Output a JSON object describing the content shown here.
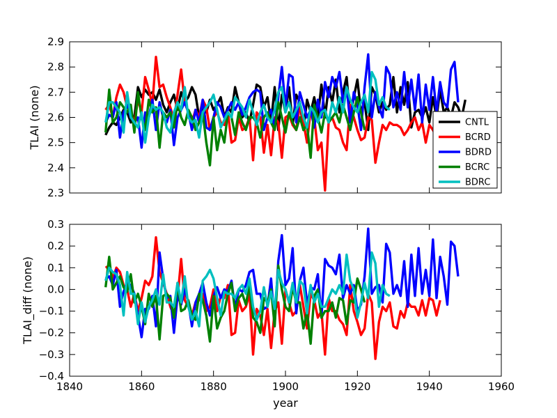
{
  "colors": {
    "CNTL": "#000000",
    "BCRD": "#ff0000",
    "BDRD": "#0000ff",
    "BCRC": "#008000",
    "BDRC": "#00bfbf"
  },
  "chart_data": [
    {
      "type": "line",
      "ylabel": "TLAI (none)",
      "xlim": [
        1840,
        1960
      ],
      "ylim": [
        2.3,
        2.9
      ],
      "yticks": [
        "2.3",
        "2.4",
        "2.5",
        "2.6",
        "2.7",
        "2.8",
        "2.9"
      ],
      "legend_position": "lower-right",
      "legend": [
        "CNTL",
        "BCRD",
        "BDRD",
        "BCRC",
        "BDRC"
      ],
      "series": [
        {
          "name": "CNTL",
          "start_year": 1850,
          "values": [
            2.53,
            2.56,
            2.58,
            2.57,
            2.6,
            2.63,
            2.62,
            2.58,
            2.6,
            2.72,
            2.68,
            2.71,
            2.69,
            2.7,
            2.67,
            2.71,
            2.65,
            2.62,
            2.66,
            2.69,
            2.63,
            2.7,
            2.66,
            2.68,
            2.72,
            2.69,
            2.6,
            2.64,
            2.62,
            2.67,
            2.63,
            2.65,
            2.68,
            2.6,
            2.64,
            2.62,
            2.72,
            2.66,
            2.6,
            2.62,
            2.58,
            2.65,
            2.73,
            2.72,
            2.64,
            2.68,
            2.58,
            2.72,
            2.55,
            2.69,
            2.62,
            2.72,
            2.57,
            2.69,
            2.66,
            2.55,
            2.67,
            2.62,
            2.68,
            2.6,
            2.73,
            2.6,
            2.72,
            2.66,
            2.75,
            2.62,
            2.7,
            2.76,
            2.6,
            2.68,
            2.75,
            2.62,
            2.66,
            2.55,
            2.72,
            2.69,
            2.62,
            2.66,
            2.63,
            2.65,
            2.76,
            2.62,
            2.72,
            2.65,
            2.74,
            2.56,
            2.62,
            2.63,
            2.6,
            2.64,
            2.58,
            2.68,
            2.6,
            2.71,
            2.62,
            2.64,
            2.6,
            2.66,
            2.64,
            2.6,
            2.67
          ]
        },
        {
          "name": "BCRD",
          "start_year": 1850,
          "values": [
            2.63,
            2.65,
            2.6,
            2.68,
            2.73,
            2.7,
            2.64,
            2.62,
            2.58,
            2.67,
            2.62,
            2.76,
            2.71,
            2.65,
            2.84,
            2.72,
            2.73,
            2.68,
            2.64,
            2.59,
            2.69,
            2.79,
            2.66,
            2.62,
            2.58,
            2.63,
            2.6,
            2.67,
            2.64,
            2.55,
            2.6,
            2.62,
            2.58,
            2.57,
            2.62,
            2.5,
            2.51,
            2.6,
            2.55,
            2.56,
            2.6,
            2.43,
            2.62,
            2.6,
            2.46,
            2.57,
            2.45,
            2.6,
            2.58,
            2.44,
            2.6,
            2.61,
            2.57,
            2.55,
            2.65,
            2.58,
            2.5,
            2.63,
            2.6,
            2.47,
            2.5,
            2.31,
            2.58,
            2.6,
            2.56,
            2.55,
            2.5,
            2.47,
            2.65,
            2.6,
            2.55,
            2.51,
            2.52,
            2.6,
            2.59,
            2.42,
            2.5,
            2.57,
            2.55,
            2.58,
            2.57,
            2.57,
            2.56,
            2.53,
            2.55,
            2.58,
            2.6,
            2.55,
            2.58,
            2.5,
            2.57,
            2.55,
            2.52,
            2.55
          ]
        },
        {
          "name": "BDRD",
          "start_year": 1850,
          "values": [
            2.58,
            2.61,
            2.6,
            2.66,
            2.52,
            2.62,
            2.65,
            2.6,
            2.58,
            2.6,
            2.48,
            2.62,
            2.6,
            2.67,
            2.55,
            2.66,
            2.6,
            2.58,
            2.63,
            2.49,
            2.6,
            2.63,
            2.66,
            2.62,
            2.55,
            2.63,
            2.58,
            2.67,
            2.56,
            2.55,
            2.6,
            2.66,
            2.64,
            2.6,
            2.63,
            2.66,
            2.63,
            2.66,
            2.61,
            2.64,
            2.68,
            2.7,
            2.71,
            2.7,
            2.55,
            2.6,
            2.63,
            2.56,
            2.68,
            2.8,
            2.64,
            2.77,
            2.76,
            2.58,
            2.7,
            2.65,
            2.6,
            2.63,
            2.56,
            2.67,
            2.6,
            2.74,
            2.68,
            2.76,
            2.72,
            2.78,
            2.66,
            2.72,
            2.58,
            2.7,
            2.65,
            2.55,
            2.72,
            2.85,
            2.6,
            2.7,
            2.64,
            2.6,
            2.8,
            2.77,
            2.64,
            2.7,
            2.63,
            2.78,
            2.64,
            2.75,
            2.63,
            2.77,
            2.58,
            2.73,
            2.63,
            2.76,
            2.62,
            2.74,
            2.66,
            2.64,
            2.79,
            2.82,
            2.66
          ]
        },
        {
          "name": "BCRC",
          "start_year": 1850,
          "values": [
            2.54,
            2.71,
            2.58,
            2.6,
            2.66,
            2.64,
            2.62,
            2.65,
            2.54,
            2.7,
            2.6,
            2.55,
            2.67,
            2.62,
            2.64,
            2.48,
            2.62,
            2.6,
            2.62,
            2.56,
            2.66,
            2.6,
            2.57,
            2.63,
            2.6,
            2.55,
            2.58,
            2.62,
            2.5,
            2.41,
            2.6,
            2.47,
            2.55,
            2.5,
            2.62,
            2.6,
            2.53,
            2.62,
            2.58,
            2.55,
            2.6,
            2.6,
            2.58,
            2.52,
            2.6,
            2.62,
            2.58,
            2.55,
            2.66,
            2.6,
            2.54,
            2.62,
            2.58,
            2.55,
            2.6,
            2.55,
            2.57,
            2.44,
            2.65,
            2.6,
            2.54,
            2.62,
            2.58,
            2.6,
            2.62,
            2.58,
            2.65,
            2.6,
            2.55,
            2.62,
            2.68,
            2.62,
            2.55
          ]
        },
        {
          "name": "BDRC",
          "start_year": 1850,
          "values": [
            2.58,
            2.66,
            2.66,
            2.64,
            2.62,
            2.54,
            2.7,
            2.6,
            2.58,
            2.56,
            2.62,
            2.5,
            2.6,
            2.65,
            2.63,
            2.64,
            2.62,
            2.56,
            2.54,
            2.62,
            2.66,
            2.63,
            2.72,
            2.6,
            2.58,
            2.59,
            2.52,
            2.62,
            2.64,
            2.66,
            2.69,
            2.63,
            2.56,
            2.59,
            2.62,
            2.6,
            2.68,
            2.66,
            2.64,
            2.6,
            2.67,
            2.62,
            2.57,
            2.62,
            2.65,
            2.6,
            2.58,
            2.63,
            2.7,
            2.72,
            2.62,
            2.66,
            2.6,
            2.63,
            2.66,
            2.6,
            2.56,
            2.64,
            2.62,
            2.58,
            2.62,
            2.63,
            2.58,
            2.66,
            2.62,
            2.68,
            2.62,
            2.72,
            2.67,
            2.64,
            2.62,
            2.66,
            2.69,
            2.62,
            2.78,
            2.75,
            2.65,
            2.68,
            2.64,
            2.63
          ]
        }
      ]
    },
    {
      "type": "line",
      "xlabel": "year",
      "ylabel": "TLAI_diff (none)",
      "xlim": [
        1840,
        1960
      ],
      "ylim": [
        -0.4,
        0.3
      ],
      "xticks": [
        "1840",
        "1860",
        "1880",
        "1900",
        "1920",
        "1940",
        "1960"
      ],
      "yticks": [
        "−0.4",
        "−0.3",
        "−0.2",
        "−0.1",
        "0.0",
        "0.1",
        "0.2",
        "0.3"
      ],
      "series": [
        {
          "name": "BCRD",
          "start_year": 1850,
          "values": [
            0.1,
            0.11,
            0.05,
            0.1,
            0.08,
            0.02,
            0.0,
            -0.08,
            -0.02,
            -0.1,
            -0.04,
            0.04,
            0.02,
            0.06,
            0.24,
            0.08,
            0.03,
            -0.02,
            -0.08,
            -0.12,
            -0.04,
            0.14,
            -0.05,
            -0.08,
            -0.12,
            -0.06,
            -0.05,
            -0.02,
            -0.1,
            -0.08,
            0.0,
            -0.1,
            -0.03,
            -0.04,
            0.02,
            -0.21,
            -0.2,
            -0.05,
            -0.1,
            -0.08,
            -0.02,
            -0.3,
            -0.09,
            -0.12,
            -0.21,
            -0.09,
            -0.27,
            -0.1,
            -0.06,
            -0.25,
            0.0,
            -0.06,
            -0.12,
            -0.1,
            0.02,
            -0.08,
            -0.18,
            -0.02,
            -0.05,
            -0.13,
            -0.1,
            -0.3,
            -0.04,
            -0.1,
            -0.1,
            -0.14,
            -0.16,
            -0.21,
            0.02,
            -0.1,
            -0.15,
            -0.21,
            -0.18,
            -0.02,
            -0.06,
            -0.32,
            -0.15,
            -0.08,
            -0.1,
            -0.06,
            -0.17,
            -0.18,
            -0.1,
            -0.13,
            -0.06,
            -0.08,
            -0.08,
            -0.12,
            -0.05,
            -0.12,
            -0.04,
            -0.05,
            -0.12,
            -0.05
          ]
        },
        {
          "name": "BDRD",
          "start_year": 1850,
          "values": [
            0.05,
            0.06,
            0.02,
            0.09,
            -0.08,
            -0.01,
            0.03,
            0.02,
            -0.02,
            -0.12,
            -0.22,
            -0.09,
            -0.09,
            -0.03,
            -0.17,
            0.17,
            0.05,
            -0.04,
            -0.03,
            -0.2,
            -0.03,
            -0.07,
            0.0,
            -0.06,
            -0.17,
            -0.06,
            -0.02,
            0.03,
            -0.06,
            -0.12,
            -0.03,
            0.01,
            -0.04,
            0.0,
            -0.01,
            0.04,
            -0.09,
            0.0,
            -0.01,
            0.02,
            0.08,
            0.09,
            -0.02,
            -0.02,
            -0.09,
            -0.08,
            0.05,
            -0.16,
            0.13,
            0.25,
            0.02,
            0.05,
            0.19,
            -0.11,
            0.04,
            0.1,
            -0.07,
            0.01,
            0.0,
            0.07,
            -0.13,
            0.14,
            0.11,
            0.1,
            0.07,
            0.16,
            -0.04,
            0.02,
            -0.02,
            0.02,
            -0.1,
            -0.07,
            0.06,
            0.28,
            -0.02,
            0.01,
            0.02,
            -0.06,
            0.21,
            0.17,
            -0.02,
            0.02,
            -0.03,
            0.13,
            -0.08,
            0.16,
            -0.03,
            0.19,
            -0.02,
            0.09,
            -0.03,
            0.23,
            -0.04,
            0.15,
            0.06,
            -0.07,
            0.22,
            0.2,
            0.06
          ]
        },
        {
          "name": "BCRC",
          "start_year": 1850,
          "values": [
            0.01,
            0.15,
            0.0,
            0.03,
            0.06,
            0.01,
            -0.01,
            0.07,
            -0.06,
            -0.02,
            -0.08,
            -0.16,
            -0.02,
            -0.08,
            -0.03,
            -0.23,
            -0.03,
            -0.02,
            -0.04,
            -0.13,
            0.03,
            -0.1,
            -0.09,
            -0.05,
            -0.12,
            -0.14,
            -0.02,
            -0.05,
            -0.12,
            -0.24,
            -0.03,
            -0.18,
            -0.13,
            -0.1,
            -0.02,
            0.03,
            -0.1,
            -0.04,
            -0.02,
            -0.07,
            0.02,
            -0.13,
            -0.15,
            -0.2,
            -0.04,
            -0.06,
            0.0,
            -0.17,
            0.11,
            0.0,
            -0.08,
            -0.1,
            0.01,
            -0.06,
            -0.06,
            -0.18,
            -0.1,
            -0.25,
            -0.03,
            0.0,
            -0.13,
            -0.1,
            -0.1,
            -0.06,
            -0.13,
            -0.04,
            -0.05,
            -0.16,
            -0.05,
            -0.06,
            0.05,
            0.0,
            -0.06
          ]
        },
        {
          "name": "BDRC",
          "start_year": 1850,
          "values": [
            0.04,
            0.1,
            0.08,
            0.07,
            0.02,
            -0.12,
            0.08,
            -0.02,
            -0.02,
            -0.16,
            -0.06,
            -0.15,
            -0.08,
            -0.05,
            0.0,
            -0.07,
            0.07,
            -0.06,
            -0.06,
            -0.08,
            0.03,
            -0.06,
            0.06,
            -0.08,
            -0.14,
            -0.1,
            -0.17,
            0.04,
            0.06,
            0.09,
            0.05,
            -0.04,
            -0.12,
            -0.01,
            -0.02,
            -0.02,
            -0.04,
            0.0,
            0.02,
            -0.02,
            0.05,
            -0.08,
            -0.14,
            -0.1,
            0.01,
            -0.08,
            -0.01,
            -0.09,
            0.09,
            0.03,
            0.0,
            -0.06,
            0.03,
            -0.06,
            0.04,
            0.02,
            -0.11,
            0.02,
            -0.06,
            -0.02,
            -0.08,
            -0.08,
            -0.04,
            0.0,
            -0.02,
            0.02,
            -0.02,
            0.16,
            0.04,
            0.0,
            -0.13,
            -0.06,
            0.03,
            -0.04,
            0.17,
            0.12,
            -0.08,
            0.02,
            -0.02,
            -0.03
          ]
        }
      ]
    }
  ]
}
